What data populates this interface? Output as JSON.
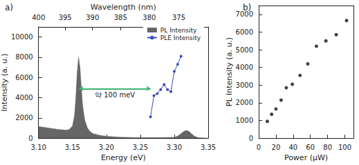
{
  "chart_data": [
    {
      "type": "line",
      "panel": "a)",
      "xlabel": "Energy (eV)",
      "ylabel": "Intensity (a. u.)",
      "x2label": "Wavelength (nm)",
      "xlim": [
        3.1,
        3.35
      ],
      "xticks": [
        {
          "value": 3.1,
          "label": "3.10"
        },
        {
          "value": 3.15,
          "label": "3.15"
        },
        {
          "value": 3.2,
          "label": "3.20"
        },
        {
          "value": 3.25,
          "label": "3.25"
        },
        {
          "value": 3.3,
          "label": "3.30"
        },
        {
          "value": 3.35,
          "label": "3.35"
        }
      ],
      "x2ticks": [
        {
          "value": 3.1,
          "label": "400"
        },
        {
          "value": 3.1392,
          "label": "395"
        },
        {
          "value": 3.1795,
          "label": "390"
        },
        {
          "value": 3.2208,
          "label": "385"
        },
        {
          "value": 3.2632,
          "label": "380"
        },
        {
          "value": 3.3067,
          "label": "375"
        }
      ],
      "ylim": [
        0,
        11000
      ],
      "yticks": [
        0,
        2000,
        4000,
        6000,
        8000,
        10000
      ],
      "grid": false,
      "legend": "upper right",
      "series": [
        {
          "name": "PL Intensity",
          "type": "area",
          "color": "#666666",
          "x": [
            3.1,
            3.105,
            3.11,
            3.115,
            3.12,
            3.125,
            3.13,
            3.135,
            3.14,
            3.145,
            3.15,
            3.153,
            3.155,
            3.157,
            3.159,
            3.161,
            3.163,
            3.165,
            3.168,
            3.172,
            3.176,
            3.18,
            3.19,
            3.2,
            3.22,
            3.24,
            3.26,
            3.28,
            3.3,
            3.305,
            3.31,
            3.315,
            3.318,
            3.322,
            3.326,
            3.33,
            3.335,
            3.34,
            3.35
          ],
          "values": [
            1150,
            1100,
            1050,
            1000,
            950,
            900,
            850,
            820,
            800,
            850,
            1200,
            2200,
            4000,
            6500,
            8000,
            7000,
            5000,
            3200,
            1800,
            1000,
            650,
            450,
            280,
            180,
            100,
            60,
            50,
            50,
            80,
            200,
            450,
            700,
            750,
            650,
            400,
            180,
            60,
            20,
            0
          ]
        },
        {
          "name": "PLE Intensity",
          "type": "line",
          "color": "#3b4cc0",
          "marker": "circle",
          "x": [
            3.265,
            3.27,
            3.275,
            3.28,
            3.285,
            3.29,
            3.295,
            3.3,
            3.305,
            3.31
          ],
          "values": [
            2100,
            4200,
            4400,
            4800,
            5300,
            4800,
            4600,
            6600,
            7300,
            8100
          ]
        }
      ],
      "annotation": {
        "text": "약 100 meV",
        "x": [
          3.16,
          3.265
        ],
        "y": 4900,
        "color": "#3cb371"
      }
    },
    {
      "type": "scatter",
      "panel": "b)",
      "xlabel": "Power (μW)",
      "ylabel": "PL Intensity (a. u.)",
      "xlim": [
        0,
        110
      ],
      "xticks": [
        0,
        20,
        40,
        60,
        80,
        100
      ],
      "ylim": [
        0,
        7500
      ],
      "yticks": [
        0,
        1000,
        2000,
        3000,
        4000,
        5000,
        6000,
        7000
      ],
      "grid": false,
      "color": "#111111",
      "marker": "circle",
      "x": [
        10,
        15,
        20,
        26,
        32,
        39,
        48,
        57,
        67,
        78,
        90,
        102
      ],
      "values": [
        950,
        1350,
        1650,
        2150,
        2850,
        3050,
        3550,
        4200,
        5200,
        5500,
        5850,
        6650
      ]
    }
  ]
}
